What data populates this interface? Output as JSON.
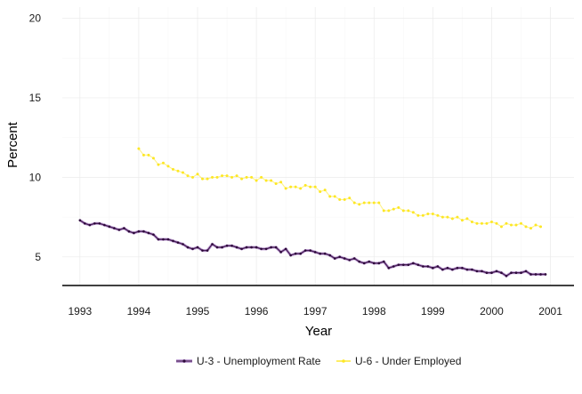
{
  "chart_data": {
    "type": "line",
    "title": "",
    "xlabel": "Year",
    "ylabel": "Percent",
    "xlim": [
      1992.7,
      2001.4
    ],
    "ylim": [
      3.2,
      20.7
    ],
    "x_ticks": [
      1993,
      1994,
      1995,
      1996,
      1997,
      1998,
      1999,
      2000,
      2001
    ],
    "x_tick_labels": [
      "1993",
      "1994",
      "1995",
      "1996",
      "1997",
      "1998",
      "1999",
      "2000",
      "2001"
    ],
    "y_ticks": [
      5,
      10,
      15,
      20
    ],
    "y_tick_labels": [
      "5",
      "10",
      "15",
      "20"
    ],
    "grid": true,
    "legend_position": "bottom",
    "series": [
      {
        "name": "U-3 - Unemployment Rate",
        "color": "#4b1f5c",
        "legend_color": "#c5a8d8",
        "x_start": 1993.0,
        "x_step": 0.08333,
        "values": [
          7.3,
          7.1,
          7.0,
          7.1,
          7.1,
          7.0,
          6.9,
          6.8,
          6.7,
          6.8,
          6.6,
          6.5,
          6.6,
          6.6,
          6.5,
          6.4,
          6.1,
          6.1,
          6.1,
          6.0,
          5.9,
          5.8,
          5.6,
          5.5,
          5.6,
          5.4,
          5.4,
          5.8,
          5.6,
          5.6,
          5.7,
          5.7,
          5.6,
          5.5,
          5.6,
          5.6,
          5.6,
          5.5,
          5.5,
          5.6,
          5.6,
          5.3,
          5.5,
          5.1,
          5.2,
          5.2,
          5.4,
          5.4,
          5.3,
          5.2,
          5.2,
          5.1,
          4.9,
          5.0,
          4.9,
          4.8,
          4.9,
          4.7,
          4.6,
          4.7,
          4.6,
          4.6,
          4.7,
          4.3,
          4.4,
          4.5,
          4.5,
          4.5,
          4.6,
          4.5,
          4.4,
          4.4,
          4.3,
          4.4,
          4.2,
          4.3,
          4.2,
          4.3,
          4.3,
          4.2,
          4.2,
          4.1,
          4.1,
          4.0,
          4.0,
          4.1,
          4.0,
          3.8,
          4.0,
          4.0,
          4.0,
          4.1,
          3.9,
          3.9,
          3.9,
          3.9
        ]
      },
      {
        "name": "U-6 - Under Employed",
        "color": "#fde725",
        "legend_color": "#fde725",
        "x_start": 1994.0,
        "x_step": 0.08333,
        "values": [
          11.8,
          11.4,
          11.4,
          11.2,
          10.8,
          10.9,
          10.7,
          10.5,
          10.4,
          10.3,
          10.1,
          10.0,
          10.2,
          9.9,
          9.9,
          10.0,
          10.0,
          10.1,
          10.1,
          10.0,
          10.1,
          9.9,
          10.0,
          10.0,
          9.8,
          10.0,
          9.8,
          9.8,
          9.6,
          9.7,
          9.3,
          9.4,
          9.4,
          9.3,
          9.5,
          9.4,
          9.4,
          9.1,
          9.2,
          8.8,
          8.8,
          8.6,
          8.6,
          8.7,
          8.4,
          8.3,
          8.4,
          8.4,
          8.4,
          8.4,
          7.9,
          7.9,
          8.0,
          8.1,
          7.9,
          7.9,
          7.8,
          7.6,
          7.6,
          7.7,
          7.7,
          7.6,
          7.5,
          7.5,
          7.4,
          7.5,
          7.3,
          7.4,
          7.2,
          7.1,
          7.1,
          7.1,
          7.2,
          7.1,
          6.9,
          7.1,
          7.0,
          7.0,
          7.1,
          6.9,
          6.8,
          7.0,
          6.9
        ]
      }
    ]
  }
}
